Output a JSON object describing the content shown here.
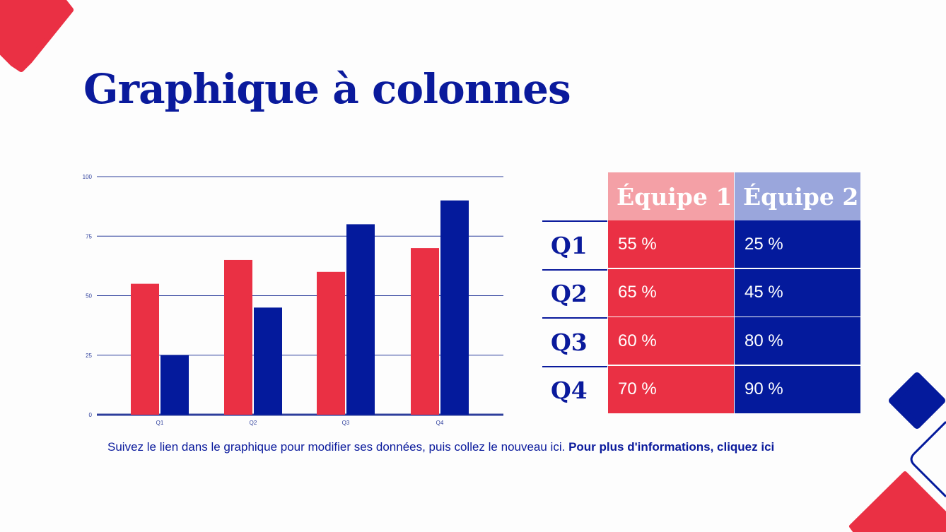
{
  "title": "Graphique à colonnes",
  "colors": {
    "team1": "#ea3044",
    "team2": "#041a9c",
    "team1_header": "#f4a0a6",
    "team2_header": "#9aa6dc",
    "grid": "#2d3e9c"
  },
  "chart_data": {
    "type": "bar",
    "categories": [
      "Q1",
      "Q2",
      "Q3",
      "Q4"
    ],
    "series": [
      {
        "values": [
          55,
          65,
          60,
          70
        ]
      },
      {
        "values": [
          25,
          45,
          80,
          90
        ]
      }
    ],
    "yticks": [
      0,
      25,
      50,
      75,
      100
    ],
    "ylim": [
      0,
      100
    ],
    "grid": true
  },
  "table": {
    "headers": [
      "Équipe 1",
      "Équipe 2"
    ],
    "rows": [
      {
        "label": "Q1",
        "team1": "55 %",
        "team2": "25 %"
      },
      {
        "label": "Q2",
        "team1": "65 %",
        "team2": "45 %"
      },
      {
        "label": "Q3",
        "team1": "60 %",
        "team2": "80 %"
      },
      {
        "label": "Q4",
        "team1": "70 %",
        "team2": "90 %"
      }
    ]
  },
  "footer": {
    "text": "Suivez le lien dans le graphique pour modifier ses données, puis collez le nouveau ici.",
    "link": "Pour plus d'informations, cliquez ici"
  }
}
